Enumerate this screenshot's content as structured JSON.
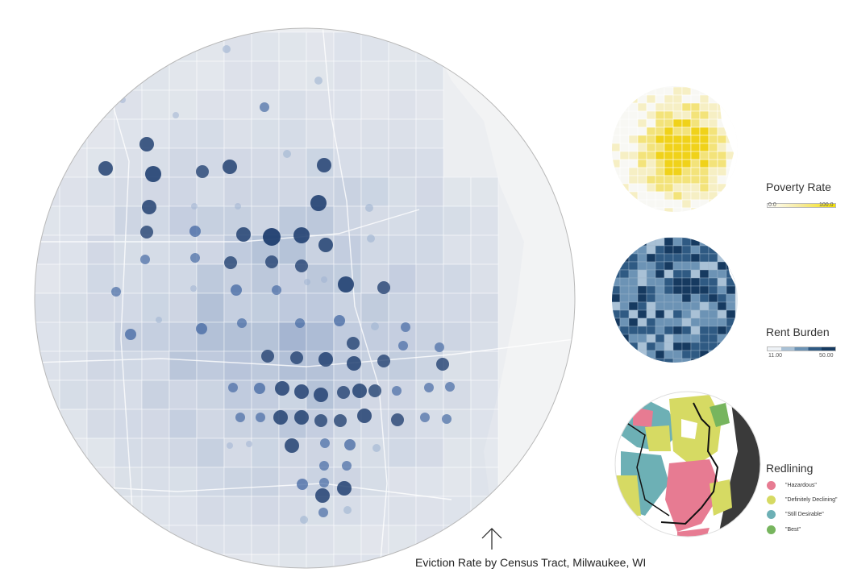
{
  "main_map": {
    "caption": "Eviction Rate by Census Tract, Milwaukee, WI",
    "arrow_glyph": "north-arrow",
    "tract_color": "#c3cde0",
    "dot_color_dark": "#203f70",
    "dot_color_light": "#9fb3d2"
  },
  "poverty": {
    "title": "Poverty Rate",
    "min_label": "0.0",
    "max_label": "100.0",
    "colors": [
      "#ffffff",
      "#f5e99a",
      "#f7e400"
    ]
  },
  "rent": {
    "title": "Rent Burden",
    "min_label": "11.00",
    "max_label": "50.00",
    "colors": [
      "#eef2f6",
      "#a9c1d6",
      "#6c93b5",
      "#2f5a83",
      "#163a60"
    ]
  },
  "redlining": {
    "title": "Redlining",
    "items": [
      {
        "label": "\"Hazardous\"",
        "color": "#e77b92"
      },
      {
        "label": "\"Definitely Declining\"",
        "color": "#d6da63"
      },
      {
        "label": "\"Still Desirable\"",
        "color": "#6db0b5"
      },
      {
        "label": "\"Best\"",
        "color": "#77b55e"
      }
    ]
  }
}
